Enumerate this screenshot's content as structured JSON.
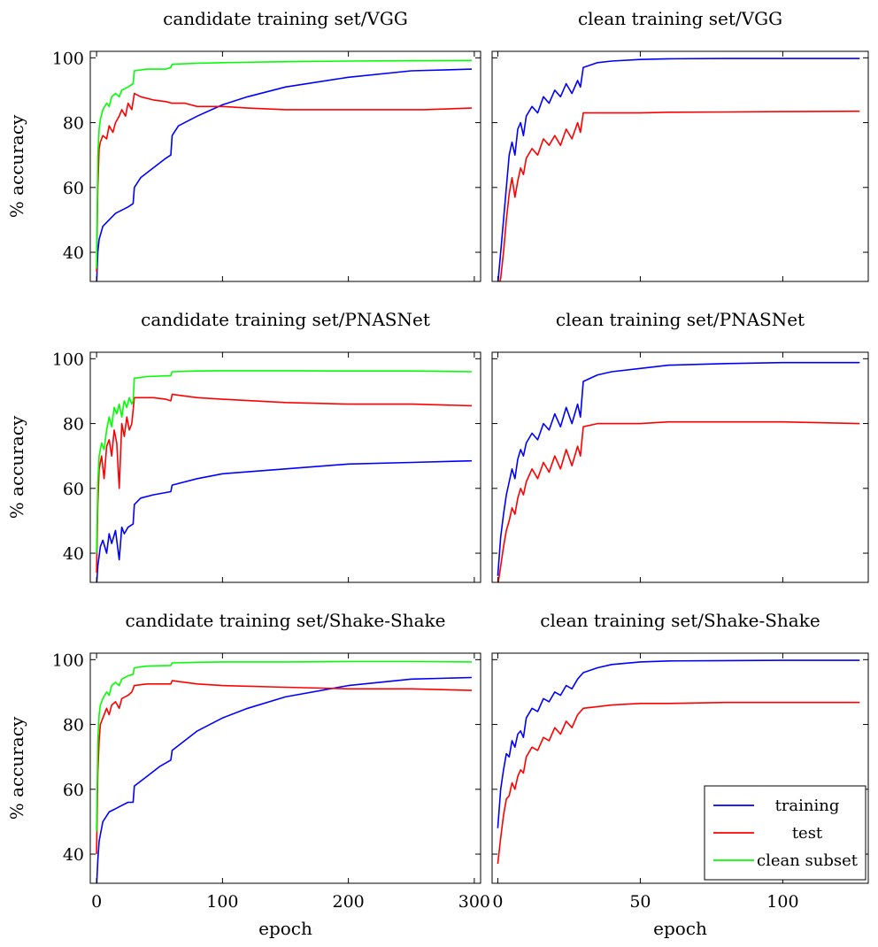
{
  "figure": {
    "ylabel": "% accuracy",
    "xlabel": "epoch"
  },
  "colors": {
    "training": "#0000ff",
    "test": "#ff0000",
    "clean_subset": "#00ff00"
  },
  "legend": {
    "placement": "bottom-right of last panel",
    "entries": [
      {
        "label": "training",
        "color": "#0000ff"
      },
      {
        "label": "test",
        "color": "#ff0000"
      },
      {
        "label": "clean subset",
        "color": "#00ff00"
      }
    ]
  },
  "chart_data": [
    {
      "type": "line",
      "title": "candidate training set/VGG",
      "xlabel": "",
      "ylabel": "% accuracy",
      "xlim": [
        -5,
        305
      ],
      "ylim": [
        31,
        102
      ],
      "xticks": [
        0,
        100,
        200,
        300
      ],
      "yticks": [
        40,
        60,
        80,
        100
      ],
      "series": [
        {
          "name": "training",
          "color": "#0000ff",
          "x": [
            0,
            1,
            2,
            5,
            10,
            15,
            20,
            25,
            29,
            30,
            35,
            45,
            55,
            59,
            60,
            65,
            80,
            100,
            120,
            150,
            200,
            250,
            298
          ],
          "y": [
            30,
            40,
            44,
            48,
            50,
            52,
            53,
            54,
            55,
            60,
            63,
            66,
            69,
            70,
            76,
            79,
            82,
            85.5,
            88,
            91,
            94,
            96,
            96.5
          ]
        },
        {
          "name": "test",
          "color": "#ff0000",
          "x": [
            0,
            1,
            2,
            3,
            5,
            8,
            10,
            13,
            15,
            18,
            20,
            23,
            25,
            28,
            30,
            35,
            45,
            55,
            60,
            70,
            80,
            100,
            120,
            150,
            180,
            200,
            230,
            260,
            298
          ],
          "y": [
            34,
            60,
            72,
            74,
            76,
            75,
            79,
            77,
            80,
            82,
            84,
            82,
            86,
            84,
            89,
            88,
            87,
            86.5,
            86,
            86,
            85,
            85,
            84.5,
            84,
            84,
            84,
            84,
            84,
            84.5
          ]
        },
        {
          "name": "clean subset",
          "color": "#00ff00",
          "x": [
            0,
            1,
            2,
            3,
            5,
            8,
            10,
            12,
            15,
            18,
            20,
            25,
            29,
            30,
            40,
            55,
            59,
            60,
            80,
            100,
            150,
            200,
            250,
            298
          ],
          "y": [
            35,
            70,
            78,
            81,
            84,
            86,
            85,
            88,
            89,
            88,
            90,
            91,
            92,
            96,
            96.5,
            96.5,
            97,
            98,
            98.3,
            98.5,
            98.8,
            99,
            99.1,
            99.2
          ]
        }
      ]
    },
    {
      "type": "line",
      "title": "clean training set/VGG",
      "xlabel": "",
      "ylabel": "",
      "xlim": [
        -2,
        130
      ],
      "ylim": [
        31,
        102
      ],
      "xticks": [
        0,
        50,
        100
      ],
      "yticks": [
        40,
        60,
        80,
        100
      ],
      "series": [
        {
          "name": "training",
          "color": "#0000ff",
          "x": [
            0,
            1,
            2,
            3,
            4,
            5,
            6,
            7,
            8,
            9,
            10,
            12,
            14,
            16,
            18,
            20,
            22,
            24,
            26,
            28,
            29,
            30,
            35,
            40,
            50,
            60,
            80,
            100,
            127
          ],
          "y": [
            30,
            40,
            50,
            60,
            70,
            74,
            70,
            78,
            80,
            76,
            82,
            85,
            83,
            88,
            86,
            90,
            88,
            92,
            89,
            93,
            91,
            97,
            98.5,
            99,
            99.5,
            99.7,
            99.8,
            99.8,
            99.8
          ]
        },
        {
          "name": "test",
          "color": "#ff0000",
          "x": [
            0,
            1,
            2,
            3,
            4,
            5,
            6,
            7,
            8,
            9,
            10,
            12,
            14,
            16,
            18,
            20,
            22,
            24,
            26,
            28,
            29,
            30,
            35,
            40,
            50,
            60,
            80,
            100,
            127
          ],
          "y": [
            28,
            32,
            40,
            50,
            58,
            63,
            57,
            62,
            66,
            64,
            69,
            72,
            70,
            75,
            73,
            76,
            73,
            78,
            75,
            80,
            77,
            83,
            83,
            83,
            83,
            83.2,
            83.3,
            83.4,
            83.5
          ]
        }
      ]
    },
    {
      "type": "line",
      "title": "candidate training set/PNASNet",
      "xlabel": "",
      "ylabel": "% accuracy",
      "xlim": [
        -5,
        305
      ],
      "ylim": [
        31,
        102
      ],
      "xticks": [
        0,
        100,
        200,
        300
      ],
      "yticks": [
        40,
        60,
        80,
        100
      ],
      "series": [
        {
          "name": "training",
          "color": "#0000ff",
          "x": [
            0,
            1,
            3,
            5,
            8,
            10,
            12,
            15,
            18,
            20,
            22,
            25,
            29,
            30,
            35,
            45,
            59,
            60,
            80,
            100,
            150,
            200,
            250,
            298
          ],
          "y": [
            30,
            36,
            42,
            44,
            40,
            46,
            43,
            47,
            38,
            48,
            46,
            48,
            49,
            55,
            57,
            58,
            59,
            61,
            63,
            64.5,
            66,
            67.5,
            68,
            68.5
          ]
        },
        {
          "name": "test",
          "color": "#ff0000",
          "x": [
            0,
            1,
            2,
            4,
            6,
            8,
            10,
            12,
            14,
            16,
            18,
            20,
            22,
            24,
            26,
            28,
            30,
            35,
            45,
            55,
            59,
            60,
            80,
            100,
            150,
            200,
            250,
            298
          ],
          "y": [
            34,
            55,
            66,
            70,
            63,
            73,
            75,
            70,
            78,
            74,
            60,
            80,
            76,
            82,
            78,
            80,
            88,
            88,
            88,
            87.5,
            87,
            89,
            88,
            87.5,
            86.5,
            86,
            86,
            85.5
          ]
        },
        {
          "name": "clean subset",
          "color": "#00ff00",
          "x": [
            0,
            1,
            2,
            4,
            6,
            8,
            10,
            12,
            14,
            16,
            18,
            20,
            22,
            24,
            26,
            28,
            29,
            30,
            40,
            59,
            60,
            80,
            100,
            150,
            200,
            250,
            298
          ],
          "y": [
            40,
            62,
            70,
            74,
            72,
            78,
            82,
            79,
            85,
            83,
            86,
            82,
            87,
            85,
            88,
            86,
            87,
            94,
            94.5,
            94.8,
            96,
            96.2,
            96.3,
            96.3,
            96.2,
            96.2,
            96
          ]
        }
      ]
    },
    {
      "type": "line",
      "title": "clean training set/PNASNet",
      "xlabel": "",
      "ylabel": "",
      "xlim": [
        -2,
        130
      ],
      "ylim": [
        31,
        102
      ],
      "xticks": [
        0,
        50,
        100
      ],
      "yticks": [
        40,
        60,
        80,
        100
      ],
      "series": [
        {
          "name": "training",
          "color": "#0000ff",
          "x": [
            0,
            1,
            2,
            3,
            4,
            5,
            6,
            7,
            8,
            9,
            10,
            12,
            14,
            16,
            18,
            20,
            22,
            24,
            26,
            28,
            29,
            30,
            35,
            40,
            50,
            60,
            80,
            100,
            127
          ],
          "y": [
            33,
            45,
            52,
            58,
            62,
            66,
            63,
            69,
            72,
            70,
            74,
            77,
            75,
            80,
            78,
            83,
            79,
            85,
            80,
            86,
            82,
            93,
            95,
            96,
            97,
            98,
            98.5,
            98.8,
            98.8
          ]
        },
        {
          "name": "test",
          "color": "#ff0000",
          "x": [
            0,
            1,
            2,
            3,
            4,
            5,
            6,
            7,
            8,
            9,
            10,
            12,
            14,
            16,
            18,
            20,
            22,
            24,
            26,
            28,
            29,
            30,
            35,
            40,
            50,
            60,
            80,
            100,
            127
          ],
          "y": [
            30,
            36,
            42,
            47,
            50,
            54,
            52,
            57,
            60,
            58,
            62,
            66,
            63,
            68,
            65,
            70,
            66,
            72,
            67,
            73,
            70,
            79,
            80,
            80,
            80,
            80.5,
            80.5,
            80.5,
            80
          ]
        }
      ]
    },
    {
      "type": "line",
      "title": "candidate training set/Shake-Shake",
      "xlabel": "epoch",
      "ylabel": "% accuracy",
      "xlim": [
        -5,
        305
      ],
      "ylim": [
        31,
        102
      ],
      "xticks": [
        0,
        100,
        200,
        300
      ],
      "yticks": [
        40,
        60,
        80,
        100
      ],
      "series": [
        {
          "name": "training",
          "color": "#0000ff",
          "x": [
            0,
            1,
            2,
            5,
            10,
            15,
            20,
            25,
            29,
            30,
            40,
            50,
            59,
            60,
            80,
            100,
            120,
            150,
            200,
            250,
            298
          ],
          "y": [
            30,
            38,
            44,
            50,
            53,
            54,
            55,
            56,
            56,
            61,
            64,
            67,
            69,
            72,
            78,
            82,
            85,
            88.5,
            92,
            94,
            94.5
          ]
        },
        {
          "name": "test",
          "color": "#ff0000",
          "x": [
            0,
            1,
            2,
            3,
            5,
            8,
            10,
            12,
            15,
            18,
            20,
            25,
            28,
            30,
            40,
            55,
            59,
            60,
            80,
            100,
            150,
            200,
            250,
            298
          ],
          "y": [
            40,
            65,
            75,
            80,
            82,
            85,
            83,
            86,
            87,
            85,
            88,
            89,
            90,
            92,
            92.5,
            92.5,
            92.5,
            93.5,
            92.5,
            92,
            91.5,
            91,
            91,
            90.5
          ]
        },
        {
          "name": "clean subset",
          "color": "#00ff00",
          "x": [
            0,
            1,
            2,
            3,
            5,
            8,
            10,
            12,
            15,
            18,
            20,
            25,
            29,
            30,
            40,
            59,
            60,
            80,
            100,
            150,
            200,
            250,
            298
          ],
          "y": [
            47,
            75,
            83,
            86,
            88,
            90,
            89,
            92,
            93,
            92,
            94,
            95,
            95.5,
            97.5,
            98,
            98.2,
            99,
            99.2,
            99.3,
            99.3,
            99.4,
            99.4,
            99.3
          ]
        }
      ]
    },
    {
      "type": "line",
      "title": "clean training set/Shake-Shake",
      "xlabel": "epoch",
      "ylabel": "",
      "xlim": [
        -2,
        130
      ],
      "ylim": [
        31,
        102
      ],
      "xticks": [
        0,
        50,
        100
      ],
      "yticks": [
        40,
        60,
        80,
        100
      ],
      "series": [
        {
          "name": "training",
          "color": "#0000ff",
          "x": [
            0,
            1,
            2,
            3,
            4,
            5,
            6,
            7,
            8,
            9,
            10,
            12,
            14,
            16,
            18,
            20,
            22,
            24,
            26,
            28,
            30,
            35,
            40,
            50,
            60,
            80,
            100,
            127
          ],
          "y": [
            48,
            60,
            66,
            71,
            70,
            75,
            73,
            77,
            78,
            76,
            82,
            85,
            84,
            88,
            87,
            90,
            89,
            92,
            91,
            94,
            96,
            97.5,
            98.5,
            99.3,
            99.6,
            99.7,
            99.8,
            99.8
          ]
        },
        {
          "name": "test",
          "color": "#ff0000",
          "x": [
            0,
            1,
            2,
            3,
            4,
            5,
            6,
            7,
            8,
            9,
            10,
            12,
            14,
            16,
            18,
            20,
            22,
            24,
            26,
            28,
            30,
            35,
            40,
            50,
            60,
            80,
            100,
            127
          ],
          "y": [
            37,
            45,
            52,
            57,
            58,
            62,
            60,
            64,
            66,
            65,
            70,
            73,
            72,
            76,
            75,
            79,
            77,
            81,
            79,
            83,
            85,
            85.5,
            86,
            86.5,
            86.5,
            86.8,
            86.8,
            86.8
          ]
        }
      ]
    }
  ]
}
